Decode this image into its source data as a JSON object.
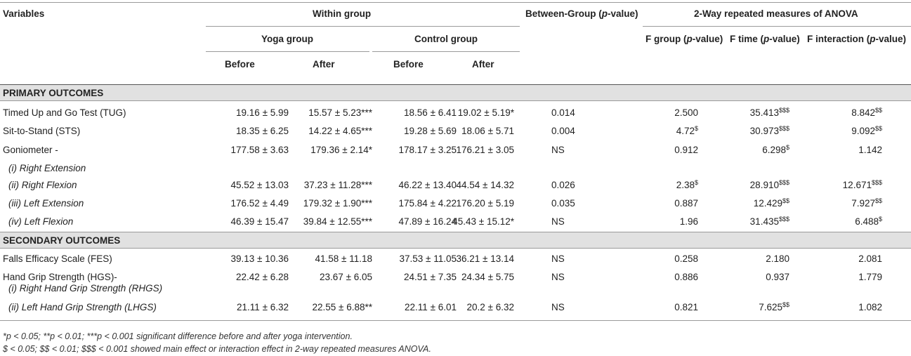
{
  "header": {
    "variables": "Variables",
    "within_group": "Within group",
    "between_group_pre": "Between-Group (",
    "between_group_p": "p",
    "between_group_post": "-value)",
    "anova": "2-Way repeated measures of ANOVA",
    "yoga_group": "Yoga group",
    "control_group": "Control group",
    "before": "Before",
    "after": "After",
    "f_group_pre": "F group (",
    "f_time_pre": "F time (",
    "f_interaction_pre": "F interaction (",
    "p_italic": "p",
    "p_suffix": "-value)"
  },
  "sections": {
    "primary": "PRIMARY OUTCOMES",
    "secondary": "SECONDARY OUTCOMES"
  },
  "rows": [
    {
      "label": "Timed Up and Go Test (TUG)",
      "yb": "19.16 ± 5.99",
      "ya": "15.57 ± 5.23***",
      "cb": "18.56 ± 6.41",
      "ca": "19.02 ± 5.19*",
      "bg": "0.014",
      "fg": "2.500",
      "fg_sup": "",
      "ft": "35.413",
      "ft_sup": "$$$",
      "fi": "8.842",
      "fi_sup": "$$"
    },
    {
      "label": "Sit-to-Stand (STS)",
      "yb": "18.35 ± 6.25",
      "ya": "14.22 ± 4.65***",
      "cb": "19.28 ± 5.69",
      "ca": "18.06 ± 5.71",
      "bg": "0.004",
      "fg": "4.72",
      "fg_sup": "$",
      "ft": "30.973",
      "ft_sup": "$$$",
      "fi": "9.092",
      "fi_sup": "$$"
    },
    {
      "label": "Goniometer -",
      "yb": "177.58 ± 3.63",
      "ya": "179.36 ± 2.14*",
      "cb": "178.17 ± 3.25",
      "ca": "176.21 ± 3.05",
      "bg": "NS",
      "fg": "0.912",
      "fg_sup": "",
      "ft": "6.298",
      "ft_sup": "$",
      "fi": "1.142",
      "fi_sup": ""
    },
    {
      "label": "(i) Right Extension"
    },
    {
      "label": "(ii) Right Flexion",
      "yb": "45.52 ± 13.03",
      "ya": "37.23 ± 11.28***",
      "cb": "46.22 ± 13.40",
      "ca": "44.54 ± 14.32",
      "bg": "0.026",
      "fg": "2.38",
      "fg_sup": "$",
      "ft": "28.910",
      "ft_sup": "$$$",
      "fi": "12.671",
      "fi_sup": "$$$"
    },
    {
      "label": "(iii) Left Extension",
      "yb": "176.52 ± 4.49",
      "ya": "179.32 ± 1.90***",
      "cb": "175.84 ± 4.22",
      "ca": "176.20 ± 5.19",
      "bg": "0.035",
      "fg": "0.887",
      "fg_sup": "",
      "ft": "12.429",
      "ft_sup": "$$",
      "fi": "7.927",
      "fi_sup": "$$"
    },
    {
      "label": "(iv) Left Flexion",
      "yb": "46.39 ± 15.47",
      "ya": "39.84 ± 12.55***",
      "cb": "47.89 ± 16.24",
      "ca": "45.43 ± 15.12*",
      "bg": "NS",
      "fg": "1.96",
      "fg_sup": "",
      "ft": "31.435",
      "ft_sup": "$$$",
      "fi": "6.488",
      "fi_sup": "$"
    },
    {
      "label": "Falls Efficacy Scale (FES)",
      "yb": "39.13 ± 10.36",
      "ya": "41.58 ± 11.18",
      "cb": "37.53 ± 11.05",
      "ca": "36.21 ± 13.14",
      "bg": "NS",
      "fg": "0.258",
      "fg_sup": "",
      "ft": "2.180",
      "ft_sup": "",
      "fi": "2.081",
      "fi_sup": ""
    },
    {
      "label": "Hand Grip Strength (HGS)-",
      "sublabel": "(i) Right Hand Grip Strength (RHGS)",
      "yb": "22.42 ± 6.28",
      "ya": "23.67 ± 6.05",
      "cb": "24.51 ± 7.35",
      "ca": "24.34 ± 5.75",
      "bg": "NS",
      "fg": "0.886",
      "fg_sup": "",
      "ft": "0.937",
      "ft_sup": "",
      "fi": "1.779",
      "fi_sup": ""
    },
    {
      "label": "(ii) Left Hand Grip Strength (LHGS)",
      "yb": "21.11 ± 6.32",
      "ya": "22.55 ± 6.88**",
      "cb": "22.11 ± 6.01",
      "ca": "20.2 ± 6.32",
      "bg": "NS",
      "fg": "0.821",
      "fg_sup": "",
      "ft": "7.625",
      "ft_sup": "$$",
      "fi": "1.082",
      "fi_sup": ""
    }
  ],
  "footnotes": {
    "line1": "*p < 0.05; **p < 0.01; ***p < 0.001 significant difference before and after yoga intervention.",
    "line2": "$ < 0.05; $$ < 0.01; $$$ < 0.001 showed main effect or interaction effect in 2-way repeated measures ANOVA."
  }
}
